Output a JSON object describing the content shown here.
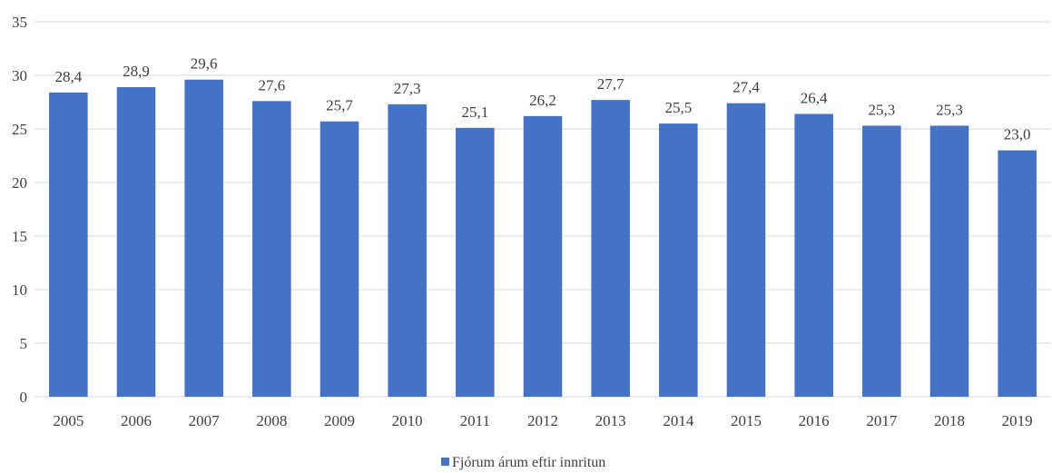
{
  "chart_data": {
    "type": "bar",
    "title": "",
    "xlabel": "",
    "ylabel": "",
    "categories": [
      "2005",
      "2006",
      "2007",
      "2008",
      "2009",
      "2010",
      "2011",
      "2012",
      "2013",
      "2014",
      "2015",
      "2016",
      "2017",
      "2018",
      "2019"
    ],
    "series": [
      {
        "name": "Fjórum árum eftir innritun",
        "color": "#4472c4",
        "values": [
          28.4,
          28.9,
          29.6,
          27.6,
          25.7,
          27.3,
          25.1,
          26.2,
          27.7,
          25.5,
          27.4,
          26.4,
          25.3,
          25.3,
          23.0
        ],
        "labels": [
          "28,4",
          "28,9",
          "29,6",
          "27,6",
          "25,7",
          "27,3",
          "25,1",
          "26,2",
          "27,7",
          "25,5",
          "27,4",
          "26,4",
          "25,3",
          "25,3",
          "23,0"
        ]
      }
    ],
    "ylim": [
      0,
      35
    ],
    "yticks": [
      "0",
      "5",
      "10",
      "15",
      "20",
      "25",
      "30",
      "35"
    ],
    "grid": true,
    "legend_position": "bottom"
  }
}
